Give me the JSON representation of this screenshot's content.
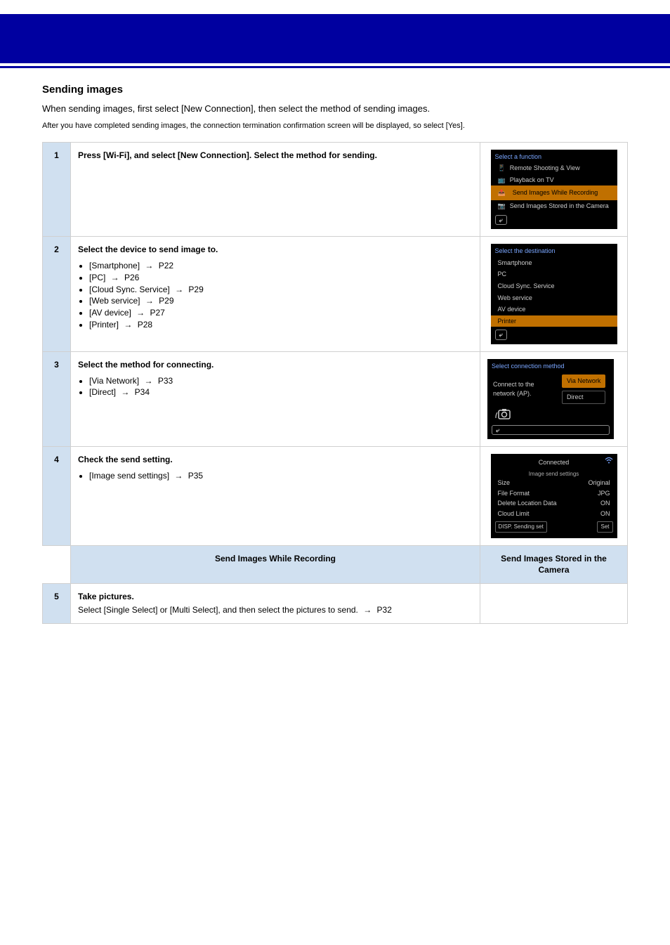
{
  "section_title": "Sending images",
  "intro": "When sending images, first select [New Connection], then select the method of sending images.",
  "small_note": "After you have completed sending images, the connection termination confirmation screen will be displayed, so select [Yes].",
  "steps": [
    {
      "num": "1",
      "heading": "Press [Wi-Fi], and select [New Connection]. Select the method for sending.",
      "screen": "func_select"
    },
    {
      "num": "2",
      "heading": "Select the device to send image to.",
      "bullets": [
        "[Smartphone]   →   P22",
        "[PC]   →   P26",
        "[Cloud Sync. Service]   →   P29",
        "[Web service]   →   P29",
        "[AV device]   →   P27",
        "[Printer]   →   P28"
      ],
      "screen": "dest_select"
    },
    {
      "num": "3",
      "heading": "Select the method for connecting.",
      "bullets": [
        "[Via Network]   →   P33",
        "[Direct]   →   P34"
      ],
      "screen": "conn_method"
    },
    {
      "num": "4",
      "heading": "Check the send setting.",
      "bullets": [
        "[Image send settings]   →   P35"
      ],
      "screen": "connected"
    }
  ],
  "modes_header": {
    "left": "Send Images While Recording",
    "right": "Send Images Stored in the Camera"
  },
  "modes_row": {
    "left_num": "5",
    "left_text": "Take pictures.\nSelect [Single Select] or [Multi Select], and then select the pictures to send. → P32",
    "right_text": ""
  },
  "screens": {
    "func_select": {
      "header": "Select a function",
      "rows": [
        {
          "icon": "phone",
          "label": "Remote Shooting & View",
          "hl": false
        },
        {
          "icon": "tv",
          "label": "Playback on TV",
          "hl": false
        },
        {
          "icon": "send",
          "label": "Send Images While Recording",
          "hl": true
        },
        {
          "icon": "cam",
          "label": "Send Images Stored in the Camera",
          "hl": false
        }
      ],
      "colors": {
        "bg": "#000",
        "hdr": "#7aa6ff",
        "hl": "#c07000"
      }
    },
    "dest_select": {
      "header": "Select the destination",
      "rows": [
        "Smartphone",
        "PC",
        "Cloud Sync. Service",
        "Web service",
        "AV device",
        "Printer"
      ],
      "hl_index": 5,
      "colors": {
        "bg": "#000",
        "hdr": "#7aa6ff",
        "hl": "#c07000"
      }
    },
    "conn_method": {
      "header": "Select connection method",
      "left_text": "Connect to the network (AP).",
      "buttons": [
        "Via Network",
        "Direct"
      ],
      "hl_index": 0,
      "colors": {
        "bg": "#000",
        "hdr": "#7aa6ff",
        "hl": "#c07000"
      }
    },
    "connected": {
      "title": "Connected",
      "sub": "Image send settings",
      "kv": [
        {
          "k": "Size",
          "v": "Original"
        },
        {
          "k": "File Format",
          "v": "JPG"
        },
        {
          "k": "Delete Location Data",
          "v": "ON"
        },
        {
          "k": "Cloud Limit",
          "v": "ON"
        }
      ],
      "foot_left": "DISP. Sending set",
      "foot_right": "Set",
      "colors": {
        "bg": "#000"
      }
    }
  }
}
